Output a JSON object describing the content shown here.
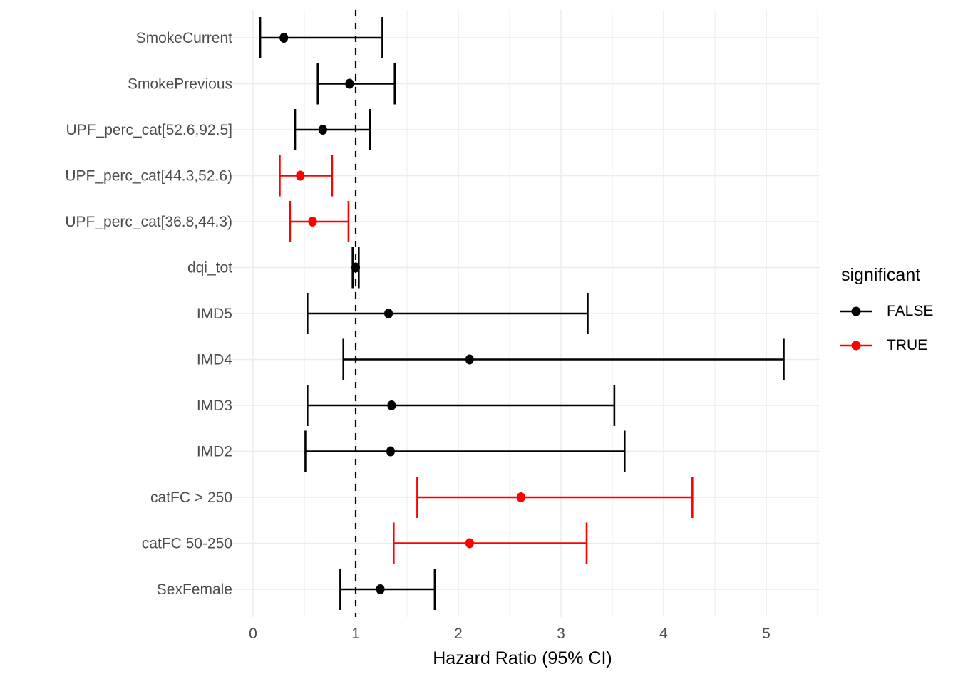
{
  "chart_data": {
    "type": "scatter",
    "subtype": "forest-plot-with-error-bars",
    "title": "",
    "xlabel": "Hazard Ratio (95% CI)",
    "ylabel": "",
    "x_ticks": [
      0,
      1,
      2,
      3,
      4,
      5
    ],
    "xlim": [
      -0.26,
      5.45
    ],
    "grid": {
      "show": true,
      "major_every": 1,
      "minor_every": 0.5
    },
    "reference_line": {
      "x": 1,
      "style": "dashed",
      "color": "#000000"
    },
    "legend": {
      "title": "significant",
      "position": "right",
      "entries": [
        {
          "label": "FALSE",
          "color": "#000000"
        },
        {
          "label": "TRUE",
          "color": "#FF0000"
        }
      ]
    },
    "colors": {
      "false_series": "#000000",
      "true_series": "#FF0000",
      "gridline": "#EBEBEB",
      "axis_text": "#4D4D4D",
      "axis_title": "#000000"
    },
    "rows": [
      {
        "term": "SmokeCurrent",
        "estimate": 0.3,
        "ci_low": 0.07,
        "ci_high": 1.26,
        "significant": "FALSE"
      },
      {
        "term": "SmokePrevious",
        "estimate": 0.94,
        "ci_low": 0.63,
        "ci_high": 1.38,
        "significant": "FALSE"
      },
      {
        "term": "UPF_perc_cat[52.6,92.5]",
        "estimate": 0.68,
        "ci_low": 0.41,
        "ci_high": 1.14,
        "significant": "FALSE"
      },
      {
        "term": "UPF_perc_cat[44.3,52.6)",
        "estimate": 0.46,
        "ci_low": 0.26,
        "ci_high": 0.77,
        "significant": "TRUE"
      },
      {
        "term": "UPF_perc_cat[36.8,44.3)",
        "estimate": 0.58,
        "ci_low": 0.36,
        "ci_high": 0.93,
        "significant": "TRUE"
      },
      {
        "term": "dqi_tot",
        "estimate": 1.0,
        "ci_low": 0.97,
        "ci_high": 1.03,
        "significant": "FALSE"
      },
      {
        "term": "IMD5",
        "estimate": 1.32,
        "ci_low": 0.53,
        "ci_high": 3.26,
        "significant": "FALSE"
      },
      {
        "term": "IMD4",
        "estimate": 2.11,
        "ci_low": 0.88,
        "ci_high": 5.17,
        "significant": "FALSE"
      },
      {
        "term": "IMD3",
        "estimate": 1.35,
        "ci_low": 0.53,
        "ci_high": 3.52,
        "significant": "FALSE"
      },
      {
        "term": "IMD2",
        "estimate": 1.34,
        "ci_low": 0.51,
        "ci_high": 3.62,
        "significant": "FALSE"
      },
      {
        "term": "catFC > 250",
        "estimate": 2.61,
        "ci_low": 1.6,
        "ci_high": 4.28,
        "significant": "TRUE"
      },
      {
        "term": "catFC 50-250",
        "estimate": 2.11,
        "ci_low": 1.37,
        "ci_high": 3.25,
        "significant": "TRUE"
      },
      {
        "term": "SexFemale",
        "estimate": 1.24,
        "ci_low": 0.85,
        "ci_high": 1.77,
        "significant": "FALSE"
      }
    ]
  }
}
